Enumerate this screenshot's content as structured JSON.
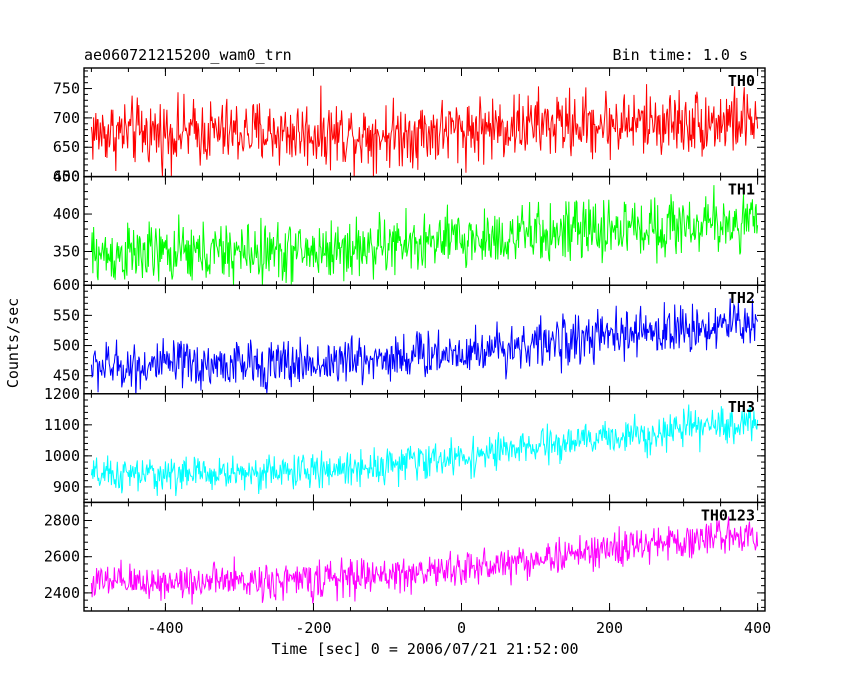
{
  "header": {
    "title": "ae060721215200_wam0_trn",
    "bin_time": "Bin time: 1.0 s"
  },
  "xlabel": "Time [sec] 0 = 2006/07/21 21:52:00",
  "ylabel": "Counts/sec",
  "chart_data": [
    {
      "type": "line",
      "name": "TH0",
      "color": "#ff0000",
      "xlim": [
        -510,
        410
      ],
      "ylim": [
        600,
        785
      ],
      "yticks": [
        600,
        650,
        700,
        750
      ],
      "x_range": [
        -500,
        400
      ],
      "trend": [
        [
          -500,
          675
        ],
        [
          -300,
          675
        ],
        [
          -100,
          672
        ],
        [
          100,
          688
        ],
        [
          400,
          695
        ]
      ],
      "noise_sd": 28
    },
    {
      "type": "line",
      "name": "TH1",
      "color": "#00ff00",
      "xlim": [
        -510,
        410
      ],
      "ylim": [
        305,
        450
      ],
      "yticks": [
        350,
        400,
        450
      ],
      "x_range": [
        -500,
        400
      ],
      "trend": [
        [
          -500,
          345
        ],
        [
          -200,
          350
        ],
        [
          0,
          365
        ],
        [
          200,
          380
        ],
        [
          400,
          390
        ]
      ],
      "noise_sd": 20
    },
    {
      "type": "line",
      "name": "TH2",
      "color": "#0000ff",
      "xlim": [
        -510,
        410
      ],
      "ylim": [
        420,
        600
      ],
      "yticks": [
        450,
        500,
        550,
        600
      ],
      "x_range": [
        -500,
        400
      ],
      "trend": [
        [
          -500,
          465
        ],
        [
          -200,
          470
        ],
        [
          0,
          490
        ],
        [
          200,
          515
        ],
        [
          400,
          540
        ]
      ],
      "noise_sd": 20
    },
    {
      "type": "line",
      "name": "TH3",
      "color": "#00ffff",
      "xlim": [
        -510,
        410
      ],
      "ylim": [
        850,
        1200
      ],
      "yticks": [
        900,
        1000,
        1100,
        1200
      ],
      "x_range": [
        -500,
        400
      ],
      "trend": [
        [
          -500,
          935
        ],
        [
          -200,
          950
        ],
        [
          0,
          995
        ],
        [
          200,
          1060
        ],
        [
          400,
          1110
        ]
      ],
      "noise_sd": 28
    },
    {
      "type": "line",
      "name": "TH0123",
      "color": "#ff00ff",
      "xlim": [
        -510,
        410
      ],
      "ylim": [
        2300,
        2900
      ],
      "yticks": [
        2400,
        2600,
        2800
      ],
      "x_range": [
        -500,
        400
      ],
      "trend": [
        [
          -500,
          2455
        ],
        [
          -200,
          2470
        ],
        [
          0,
          2530
        ],
        [
          200,
          2640
        ],
        [
          400,
          2735
        ]
      ],
      "noise_sd": 50
    }
  ],
  "xticks": [
    -400,
    -200,
    0,
    200,
    400
  ]
}
